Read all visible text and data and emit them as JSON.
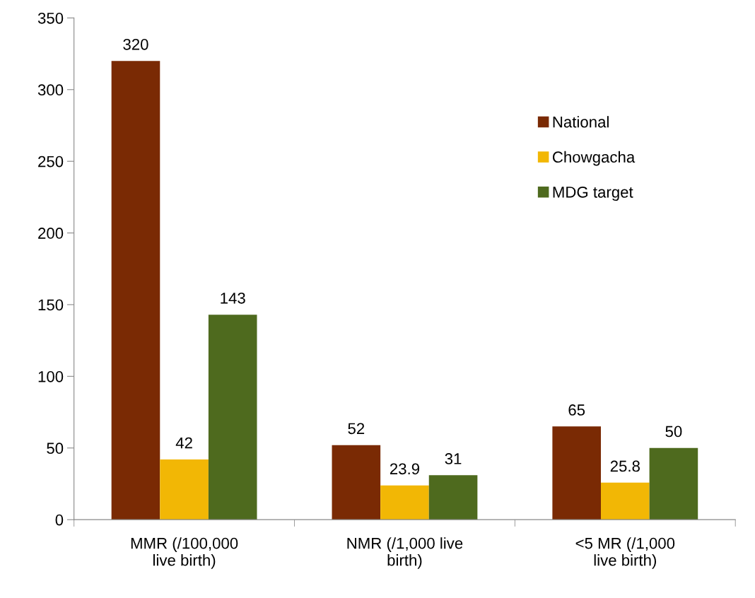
{
  "chart_data": {
    "type": "bar",
    "categories": [
      "MMR (/100,000\nlive birth)",
      "NMR (/1,000 live\nbirth)",
      "<5 MR (/1,000\nlive birth)"
    ],
    "series": [
      {
        "name": "National",
        "color": "#7a2a04",
        "values": [
          320,
          52,
          65
        ]
      },
      {
        "name": "Chowgacha",
        "color": "#f2b705",
        "values": [
          42,
          23.9,
          25.8
        ]
      },
      {
        "name": "MDG target",
        "color": "#4e6a1e",
        "values": [
          143,
          31,
          50
        ]
      }
    ],
    "ylim": [
      0,
      350
    ],
    "yticks": [
      0,
      50,
      100,
      150,
      200,
      250,
      300,
      350
    ],
    "data_labels": true,
    "legend": "right",
    "grid": false
  }
}
